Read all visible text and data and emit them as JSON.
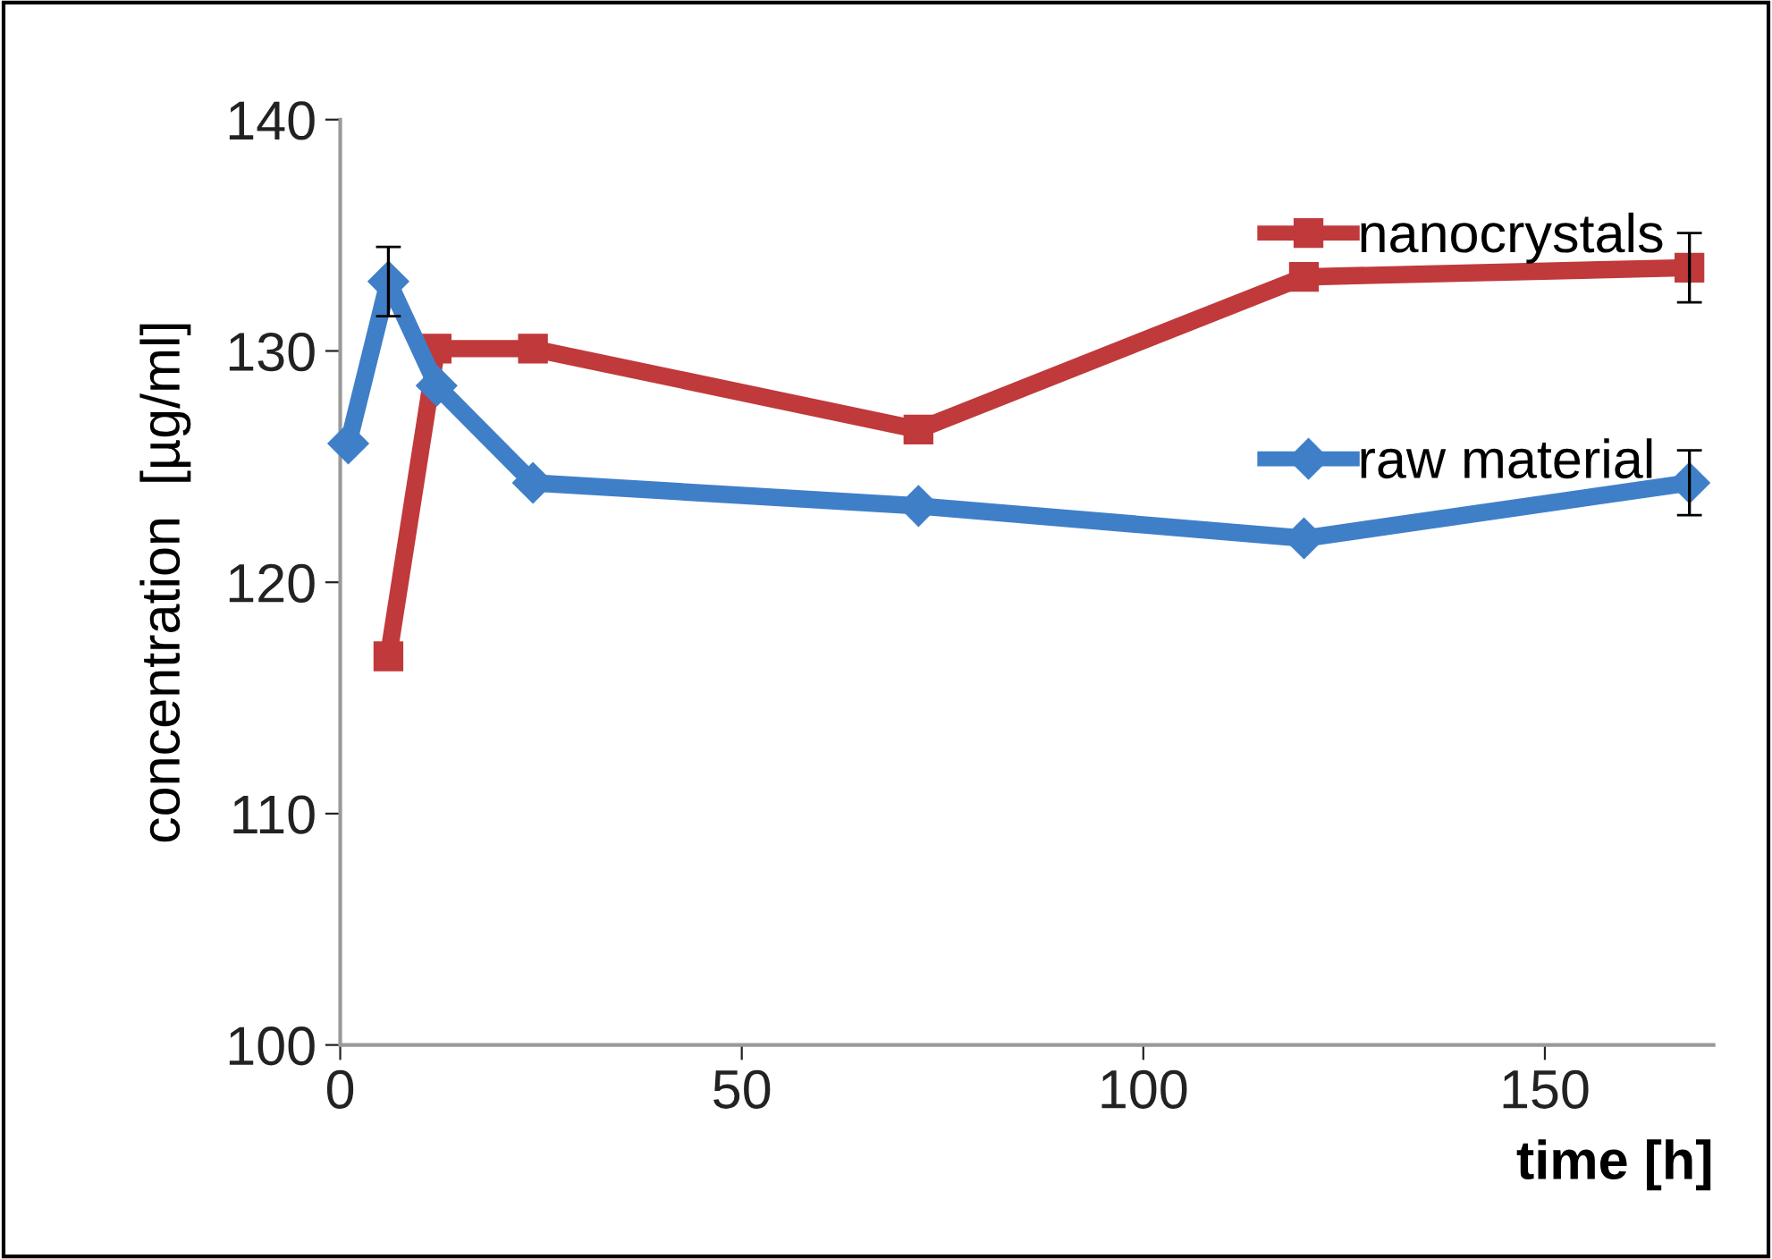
{
  "chart_data": {
    "type": "line",
    "xlabel": "time [h]",
    "ylabel": "concentration  [µg/ml]",
    "xlim": [
      0,
      171
    ],
    "xticks": [
      0,
      50,
      100,
      150
    ],
    "ylim": [
      100,
      140
    ],
    "yticks": [
      100,
      110,
      120,
      130,
      140
    ],
    "grid": false,
    "legend": "right",
    "series": [
      {
        "name": "nanocrystals",
        "color": "#c0393b",
        "marker": "square",
        "x": [
          6,
          12,
          24,
          72,
          120,
          168
        ],
        "values": [
          116.8,
          130.1,
          130.1,
          126.6,
          133.2,
          133.6
        ],
        "errors": [
          null,
          null,
          null,
          null,
          null,
          1.5
        ]
      },
      {
        "name": "raw material",
        "color": "#3f7fc8",
        "marker": "diamond",
        "x": [
          1,
          6,
          12,
          24,
          72,
          120,
          168
        ],
        "values": [
          126,
          133,
          128.5,
          124.3,
          123.3,
          121.9,
          124.3
        ],
        "errors": [
          null,
          1.5,
          null,
          null,
          null,
          null,
          1.4
        ]
      }
    ]
  }
}
